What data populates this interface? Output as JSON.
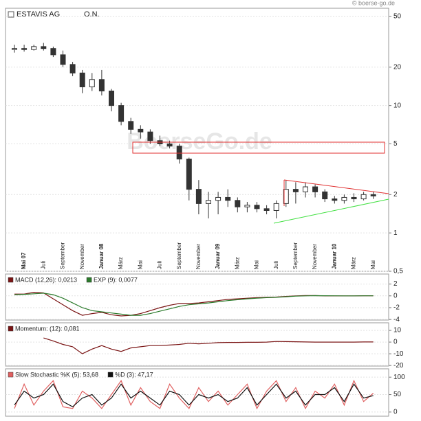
{
  "chart_data": [
    {
      "type": "candlestick",
      "title": "ESTAVIS AG",
      "subtitle": "O.N.",
      "source": "© boerse-go.de",
      "watermark": "BoerseGo.de",
      "categories": [
        null,
        "Mai 07",
        null,
        "Juli",
        null,
        "September",
        null,
        "November",
        null,
        "Januar 08",
        null,
        "März",
        null,
        "Mai",
        null,
        "Juli",
        null,
        "September",
        null,
        "November",
        null,
        "Januar 09",
        null,
        "März",
        null,
        "Mai",
        null,
        "Juli",
        null,
        "September",
        null,
        "November",
        null,
        "Januar 10",
        null,
        "März",
        null,
        "Mai"
      ],
      "open": [
        27.5,
        28,
        27.5,
        29,
        28,
        25,
        21,
        18,
        14,
        16,
        13,
        10,
        7.5,
        6.5,
        6.2,
        5.3,
        5,
        4.8,
        3.8,
        2.2,
        1.7,
        1.8,
        1.9,
        1.8,
        1.6,
        1.65,
        1.55,
        1.5,
        1.7,
        2.2,
        2.1,
        2.3,
        2.1,
        1.85,
        1.8,
        1.9,
        1.85,
        2.0
      ],
      "high": [
        30,
        30,
        30,
        31,
        29,
        27,
        22,
        19,
        18,
        19,
        13.5,
        10.5,
        8,
        7,
        6.5,
        5.8,
        5.3,
        5,
        3.9,
        2.6,
        2.1,
        2.1,
        2.2,
        1.9,
        1.75,
        1.75,
        1.65,
        1.8,
        2.6,
        2.5,
        2.5,
        2.4,
        2.2,
        1.95,
        2,
        2.05,
        2.1,
        2.1
      ],
      "low": [
        26,
        26.5,
        27,
        27,
        24,
        20,
        17,
        12.5,
        13,
        12,
        9,
        7,
        6,
        5.5,
        5,
        4.8,
        4.6,
        3.5,
        1.8,
        1.4,
        1.3,
        1.4,
        1.6,
        1.45,
        1.45,
        1.45,
        1.4,
        1.3,
        1.6,
        1.7,
        1.9,
        1.9,
        1.75,
        1.7,
        1.7,
        1.75,
        1.8,
        1.85
      ],
      "close": [
        28,
        27.5,
        29,
        28,
        25,
        21,
        18,
        14,
        16,
        13,
        10,
        7.5,
        6.5,
        6.2,
        5.3,
        5,
        4.8,
        3.8,
        2.2,
        1.7,
        1.8,
        1.9,
        1.8,
        1.6,
        1.65,
        1.55,
        1.5,
        1.7,
        2.2,
        2.1,
        2.3,
        2.1,
        1.85,
        1.8,
        1.9,
        1.85,
        2.0,
        1.95
      ],
      "up_color": "#ffffff",
      "down_color": "#333333",
      "log_scale": true,
      "grid": true,
      "ylim": [
        0.5,
        58
      ],
      "yticks": [
        {
          "value": 0.5,
          "label": "0,5"
        },
        1,
        2,
        5,
        10,
        20,
        50
      ]
    },
    {
      "type": "line",
      "ylim": [
        -4.1,
        3.7
      ],
      "yticks": [
        2,
        0,
        -2,
        -4
      ],
      "grid": true,
      "series": [
        {
          "name": "MACD (12,26): 0,0213",
          "color": "#7a1414",
          "values": [
            0.3,
            0.3,
            0.6,
            0.5,
            -0.5,
            -1.5,
            -2.5,
            -3.3,
            -3,
            -2.8,
            -3.2,
            -3.4,
            -3.3,
            -3,
            -2.5,
            -2,
            -1.6,
            -1.3,
            -1.3,
            -1.2,
            -1,
            -0.8,
            -0.6,
            -0.5,
            -0.4,
            -0.3,
            -0.25,
            -0.2,
            -0.1,
            0,
            0.05,
            0.05,
            0,
            0,
            0,
            0,
            0.02,
            0.02
          ]
        },
        {
          "name": "EXP (9): 0,0077",
          "color": "#2a7a2a",
          "values": [
            0.2,
            0.25,
            0.35,
            0.45,
            0.2,
            -0.4,
            -1.2,
            -2.0,
            -2.5,
            -2.7,
            -2.9,
            -3.1,
            -3.3,
            -3.3,
            -3.0,
            -2.6,
            -2.2,
            -1.8,
            -1.5,
            -1.35,
            -1.2,
            -1.0,
            -0.8,
            -0.65,
            -0.5,
            -0.4,
            -0.3,
            -0.25,
            -0.15,
            -0.05,
            0,
            0.03,
            0.02,
            0.01,
            0,
            0,
            0.01,
            0.01
          ]
        }
      ]
    },
    {
      "type": "line",
      "ylim": [
        -20.5,
        16.5
      ],
      "yticks": [
        10,
        0,
        -10,
        -20
      ],
      "grid": true,
      "series": [
        {
          "name": "Momentum: (12): 0,081",
          "color": "#7a1414",
          "values": [
            null,
            null,
            null,
            3.5,
            1,
            -2,
            -4,
            -10,
            -6,
            -3,
            -6,
            -8,
            -5,
            -4,
            -3,
            -3,
            -2.5,
            -2,
            -1,
            -1.5,
            -1,
            -0.5,
            -0.3,
            -0.3,
            -0.2,
            -0.2,
            0,
            0.5,
            0.4,
            0.3,
            0.1,
            0,
            0,
            0,
            0,
            0,
            0.1,
            0.1
          ]
        }
      ]
    },
    {
      "type": "line",
      "ylim": [
        -12,
        124
      ],
      "yticks": [
        100,
        50,
        0
      ],
      "grid": true,
      "series": [
        {
          "name": "Slow Stochastic %K (5): 53,68",
          "color": "#e06060",
          "values": [
            10,
            80,
            20,
            60,
            90,
            15,
            10,
            60,
            40,
            10,
            50,
            90,
            20,
            70,
            30,
            10,
            80,
            40,
            10,
            70,
            30,
            60,
            20,
            50,
            80,
            10,
            60,
            90,
            30,
            70,
            10,
            60,
            40,
            80,
            20,
            90,
            30,
            54
          ]
        },
        {
          "name": "%D (3): 47,17",
          "color": "#111111",
          "values": [
            20,
            60,
            40,
            50,
            80,
            30,
            15,
            40,
            50,
            20,
            40,
            80,
            40,
            60,
            40,
            20,
            60,
            50,
            20,
            50,
            40,
            50,
            30,
            40,
            70,
            20,
            50,
            80,
            40,
            60,
            20,
            50,
            50,
            70,
            30,
            80,
            40,
            47
          ]
        }
      ]
    }
  ]
}
